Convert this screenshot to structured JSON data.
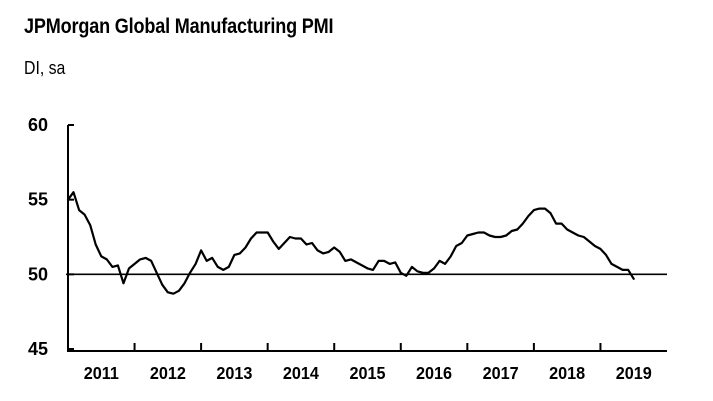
{
  "chart_data": {
    "type": "line",
    "title": "JPMorgan Global Manufacturing PMI",
    "subtitle": "DI, sa",
    "xlabel": "",
    "ylabel": "DI, sa",
    "ylim": [
      45,
      60
    ],
    "yticks": [
      "60",
      "55",
      "50",
      "45"
    ],
    "ytick_values": [
      60,
      55,
      50,
      45
    ],
    "reference_line": 50,
    "xlim": [
      2011,
      2020
    ],
    "xticks": [
      "2011",
      "2012",
      "2013",
      "2014",
      "2015",
      "2016",
      "2017",
      "2018",
      "2019"
    ],
    "grid": false,
    "legend": "none",
    "series": [
      {
        "name": "JPMorgan Global Manufacturing PMI",
        "color": "#000000",
        "start": "2011-01",
        "frequency": "monthly",
        "values": [
          55.0,
          55.5,
          54.3,
          54.0,
          53.3,
          52.0,
          51.2,
          51.0,
          50.5,
          50.6,
          49.4,
          50.4,
          50.7,
          51.0,
          51.1,
          50.9,
          50.1,
          49.3,
          48.8,
          48.7,
          48.9,
          49.4,
          50.1,
          50.7,
          51.6,
          50.9,
          51.1,
          50.5,
          50.3,
          50.5,
          51.3,
          51.4,
          51.8,
          52.4,
          52.8,
          52.8,
          52.8,
          52.2,
          51.7,
          52.1,
          52.5,
          52.4,
          52.4,
          52.0,
          52.1,
          51.6,
          51.4,
          51.5,
          51.8,
          51.5,
          50.9,
          51.0,
          50.8,
          50.6,
          50.4,
          50.3,
          50.9,
          50.9,
          50.7,
          50.8,
          50.1,
          49.9,
          50.5,
          50.2,
          50.1,
          50.1,
          50.4,
          50.9,
          50.7,
          51.2,
          51.9,
          52.1,
          52.6,
          52.7,
          52.8,
          52.8,
          52.6,
          52.5,
          52.5,
          52.6,
          52.9,
          53.0,
          53.4,
          53.9,
          54.3,
          54.4,
          54.4,
          54.1,
          53.4,
          53.4,
          53.0,
          52.8,
          52.6,
          52.5,
          52.2,
          51.9,
          51.7,
          51.3,
          50.7,
          50.5,
          50.3,
          50.3,
          49.7
        ]
      }
    ]
  }
}
